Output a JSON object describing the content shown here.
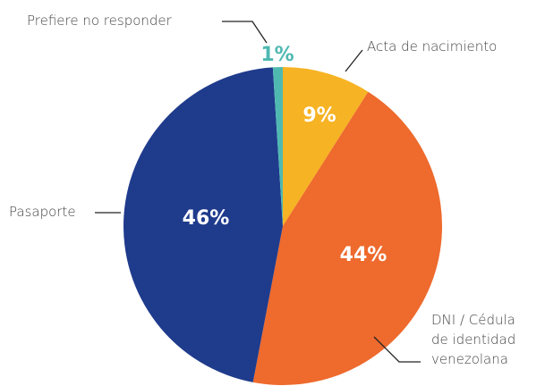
{
  "chart_data": {
    "type": "pie",
    "categories": [
      "Acta de nacimiento",
      "DNI / Cédula de identidad venezolana",
      "Pasaporte",
      "Prefiere no responder"
    ],
    "values": [
      9,
      44,
      46,
      1
    ],
    "value_labels": [
      "9%",
      "44%",
      "46%",
      "1%"
    ],
    "colors": [
      "#f6b324",
      "#ee6a2d",
      "#1f3b8c",
      "#4fb9b1"
    ]
  }
}
